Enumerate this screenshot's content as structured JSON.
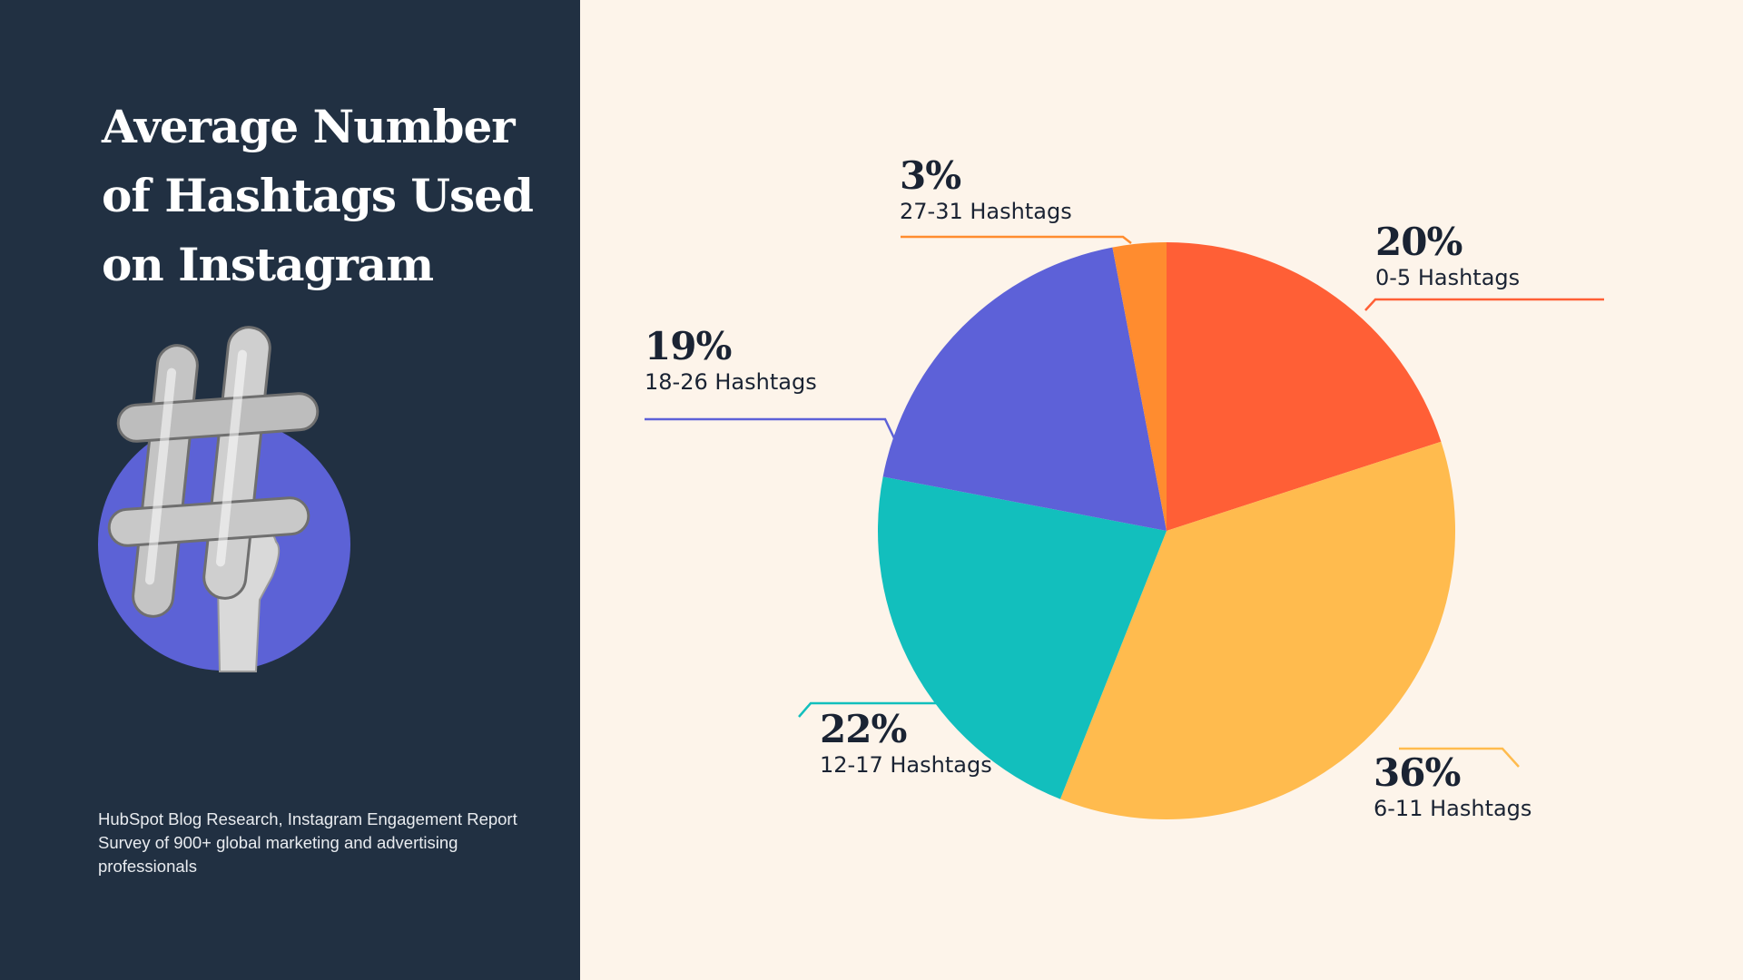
{
  "title_lines": [
    "Average Number",
    "of Hashtags Used",
    "on Instagram"
  ],
  "source_lines": [
    "HubSpot Blog Research, Instagram Engagement Report",
    "Survey of 900+ global marketing and advertising",
    "professionals"
  ],
  "colors": {
    "left_panel_bg": "#213042",
    "page_bg": "#fdf4ea",
    "illustration_circle": "#5c62d6"
  },
  "illustration": {
    "description_icon": "hashtag-balloon-icon"
  },
  "chart_data": {
    "type": "pie",
    "title": "Average Number of Hashtags Used on Instagram",
    "slices": [
      {
        "label": "0-5 Hashtags",
        "value": 20,
        "value_label": "20%",
        "color": "#ff5f36"
      },
      {
        "label": "6-11 Hashtags",
        "value": 36,
        "value_label": "36%",
        "color": "#ffbb4e"
      },
      {
        "label": "12-17 Hashtags",
        "value": 22,
        "value_label": "22%",
        "color": "#12bfbd"
      },
      {
        "label": "18-26 Hashtags",
        "value": 19,
        "value_label": "19%",
        "color": "#5d61d8"
      },
      {
        "label": "27-31 Hashtags",
        "value": 3,
        "value_label": "3%",
        "color": "#ff8c2f"
      }
    ]
  }
}
